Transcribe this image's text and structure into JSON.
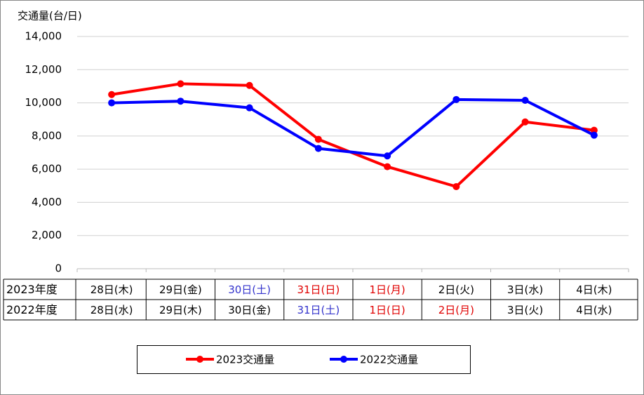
{
  "chart_data": {
    "type": "line",
    "y_axis_label": "交通量(台/日)",
    "ylim": [
      0,
      14000
    ],
    "yticks": [
      0,
      {
        "value": 2000,
        "label": "2,000"
      },
      {
        "value": 4000,
        "label": "4,000"
      },
      {
        "value": 6000,
        "label": "6,000"
      },
      {
        "value": 8000,
        "label": "8,000"
      },
      {
        "value": 10000,
        "label": "10,000"
      },
      {
        "value": 12000,
        "label": "12,000"
      },
      {
        "value": 14000,
        "label": "14,000"
      }
    ],
    "grid": true,
    "table": {
      "rows": [
        {
          "label": "2023年度",
          "cells": [
            "28日(木)",
            "29日(金)",
            "30日(土)",
            "31日(日)",
            "1日(月)",
            "2日(火)",
            "3日(水)",
            "4日(木)"
          ],
          "colors": [
            "#000000",
            "#000000",
            "#3333cc",
            "#e00000",
            "#e00000",
            "#000000",
            "#000000",
            "#000000"
          ]
        },
        {
          "label": "2022年度",
          "cells": [
            "28日(水)",
            "29日(木)",
            "30日(金)",
            "31日(土)",
            "1日(日)",
            "2日(月)",
            "3日(火)",
            "4日(水)"
          ],
          "colors": [
            "#000000",
            "#000000",
            "#000000",
            "#3333cc",
            "#e00000",
            "#e00000",
            "#000000",
            "#000000"
          ]
        }
      ]
    },
    "series": [
      {
        "name": "2023交通量",
        "color": "#ff0000",
        "values": [
          10500,
          11150,
          11050,
          7800,
          6150,
          4950,
          8850,
          8350
        ]
      },
      {
        "name": "2022交通量",
        "color": "#0000ff",
        "values": [
          10000,
          10100,
          9700,
          7250,
          6800,
          10200,
          10150,
          8050
        ]
      }
    ]
  }
}
